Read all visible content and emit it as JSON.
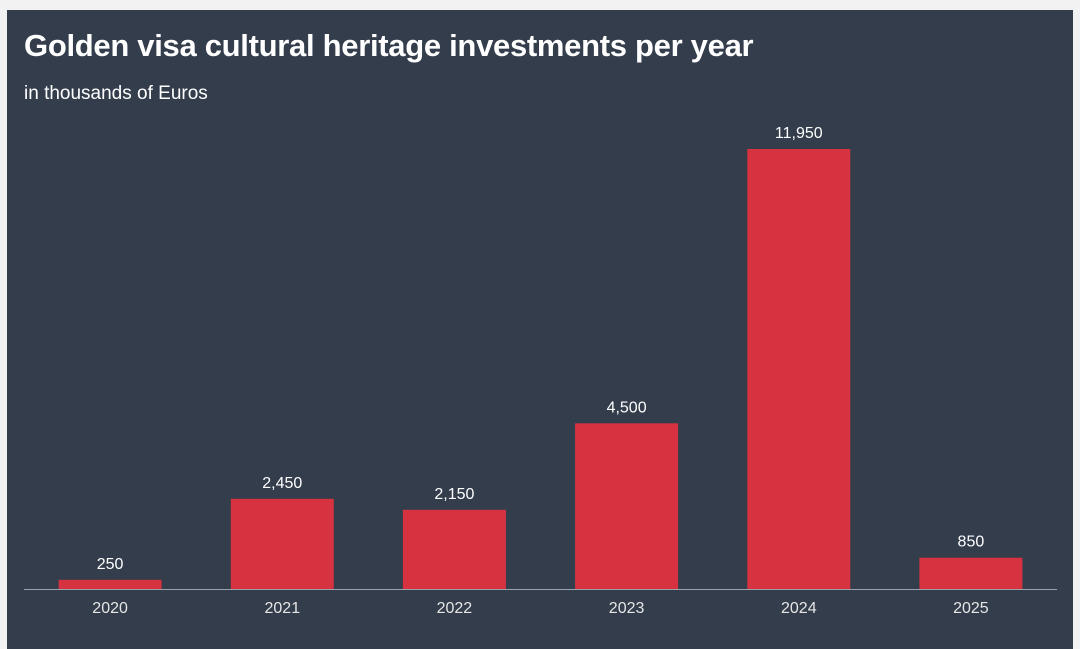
{
  "chart_data": {
    "type": "bar",
    "title": "Golden visa cultural heritage investments per year",
    "subtitle": "in thousands of Euros",
    "xlabel": "",
    "ylabel": "",
    "categories": [
      "2020",
      "2021",
      "2022",
      "2023",
      "2024",
      "2025"
    ],
    "values": [
      250,
      2450,
      2150,
      4500,
      11950,
      850
    ],
    "value_labels": [
      "250",
      "2,450",
      "2,150",
      "4,500",
      "11,950",
      "850"
    ],
    "ylim": [
      0,
      11950
    ],
    "grid": false,
    "legend": "none",
    "bar_color": "#d7323f",
    "background_color": "#333d4c",
    "text_color": "#ffffff",
    "axis_color": "#9aa3ad"
  }
}
